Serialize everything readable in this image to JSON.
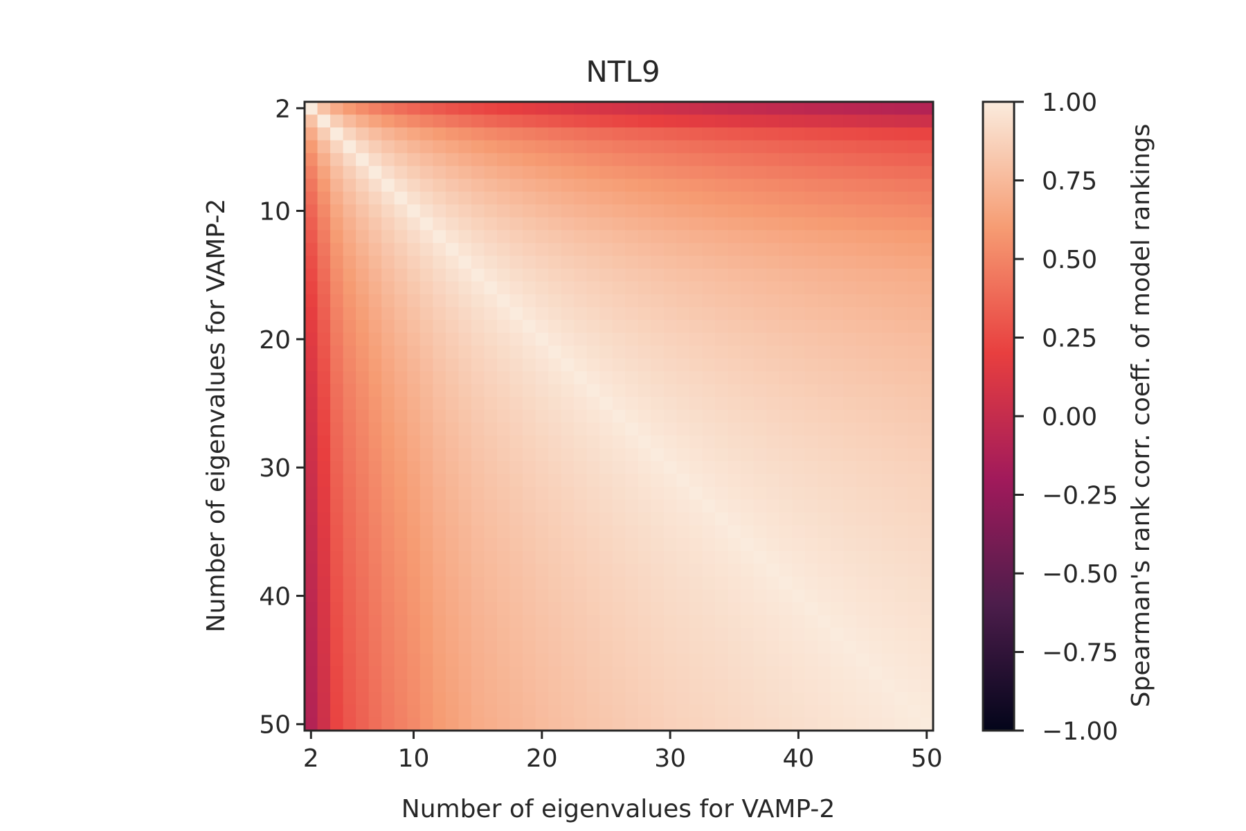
{
  "chart_data": {
    "type": "heatmap",
    "title": "NTL9",
    "xlabel": "Number of eigenvalues for VAMP-2",
    "ylabel": "Number of eigenvalues for VAMP-2",
    "x_range": [
      2,
      50
    ],
    "y_range": [
      2,
      50
    ],
    "n_cells": 49,
    "xticks": [
      2,
      10,
      20,
      30,
      40,
      50
    ],
    "yticks": [
      2,
      10,
      20,
      30,
      40,
      50
    ],
    "symmetric": true,
    "diagonal_value": 1.0,
    "row_edge_values": {
      "k": [
        2,
        3,
        4,
        5,
        6,
        8,
        10,
        12,
        15,
        20,
        25,
        30,
        40,
        50
      ],
      "corr_with_50": [
        -0.1,
        0.05,
        0.22,
        0.3,
        0.35,
        0.45,
        0.52,
        0.6,
        0.68,
        0.76,
        0.82,
        0.87,
        0.94,
        1.0
      ]
    },
    "colorbar": {
      "label": "Spearman's rank corr. coeff. of model rankings",
      "min": -1.0,
      "max": 1.0,
      "ticks": [
        1.0,
        0.75,
        0.5,
        0.25,
        0.0,
        -0.25,
        -0.5,
        -0.75,
        -1.0
      ],
      "tick_labels": [
        "1.00",
        "0.75",
        "0.50",
        "0.25",
        "0.00",
        "−0.25",
        "−0.50",
        "−0.75",
        "−1.00"
      ],
      "colormap": "rocket",
      "stops": [
        "#03051a",
        "#4c1d4b",
        "#a11a5b",
        "#e83f3f",
        "#f69c73",
        "#faebdd"
      ]
    }
  }
}
